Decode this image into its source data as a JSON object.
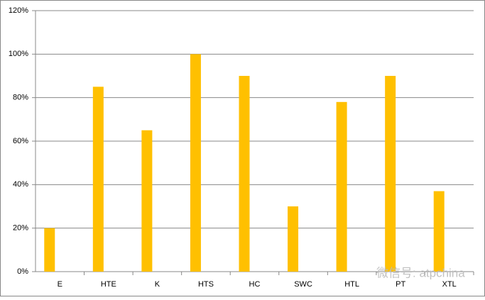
{
  "chart_data": {
    "type": "bar",
    "categories": [
      "E",
      "HTE",
      "K",
      "HTS",
      "HC",
      "SWC",
      "HTL",
      "PT",
      "XTL"
    ],
    "values": [
      20,
      85,
      65,
      100,
      90,
      30,
      78,
      90,
      37
    ],
    "color": "#ffc000",
    "ylim": [
      0,
      120
    ],
    "yticks": [
      {
        "value": 0,
        "label": "0%"
      },
      {
        "value": 20,
        "label": "20%"
      },
      {
        "value": 40,
        "label": "40%"
      },
      {
        "value": 60,
        "label": "60%"
      },
      {
        "value": 80,
        "label": "80%"
      },
      {
        "value": 100,
        "label": "100%"
      },
      {
        "value": 120,
        "label": "120%"
      }
    ],
    "grid": true,
    "watermark": "微信号: atpchina"
  }
}
